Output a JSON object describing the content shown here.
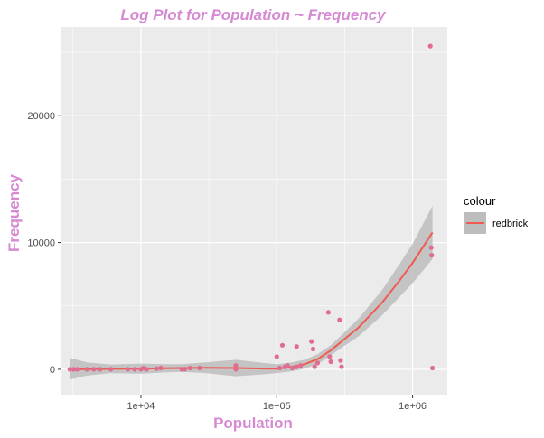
{
  "chart_data": {
    "type": "scatter",
    "title": "Log Plot for Population ~ Frequency",
    "xlabel": "Population",
    "ylabel": "Frequency",
    "x_scale": "log10",
    "xlim": [
      2600,
      1800000
    ],
    "ylim": [
      -2000,
      27000
    ],
    "x_ticks": [
      10000,
      100000,
      1000000
    ],
    "x_tick_labels": [
      "1e+04",
      "1e+05",
      "1e+06"
    ],
    "y_ticks": [
      0,
      10000,
      20000
    ],
    "y_tick_labels": [
      "0",
      "10000",
      "20000"
    ],
    "grid": true,
    "legend": {
      "title": "colour",
      "placement": "right",
      "entries": [
        "redbrick"
      ]
    },
    "colors": {
      "point": "#e06c8f",
      "line": "#f05a50",
      "ribbon": "#bdbdbd",
      "panel": "#ebebeb",
      "gridline": "#ffffff",
      "title": "#d68ad2",
      "axis_title": "#d68ad2"
    },
    "points": {
      "x": [
        3000,
        3200,
        3400,
        4000,
        4500,
        5000,
        6000,
        8000,
        9000,
        10000,
        10500,
        11000,
        13000,
        14000,
        20000,
        21000,
        23000,
        27000,
        50000,
        50000,
        100000,
        105000,
        110000,
        115000,
        120000,
        130000,
        140000,
        140000,
        150000,
        180000,
        185000,
        190000,
        200000,
        240000,
        245000,
        250000,
        290000,
        295000,
        300000,
        1350000,
        1370000,
        1380000,
        1400000
      ],
      "y": [
        0,
        0,
        0,
        0,
        0,
        0,
        0,
        0,
        0,
        0,
        100,
        0,
        50,
        100,
        0,
        0,
        100,
        100,
        0,
        300,
        1000,
        100,
        1900,
        200,
        300,
        100,
        1800,
        200,
        300,
        2200,
        1600,
        200,
        500,
        4500,
        1000,
        600,
        3900,
        700,
        200,
        25500,
        9600,
        9000,
        100
      ]
    },
    "smooth": {
      "x": [
        3000,
        4000,
        6000,
        10000,
        15000,
        20000,
        30000,
        50000,
        80000,
        100000,
        130000,
        160000,
        200000,
        250000,
        300000,
        400000,
        600000,
        800000,
        1000000,
        1400000
      ],
      "y": [
        0,
        20,
        40,
        50,
        80,
        100,
        120,
        100,
        60,
        50,
        200,
        400,
        800,
        1500,
        2200,
        3300,
        5300,
        7000,
        8400,
        10800
      ],
      "lower": [
        -800,
        -500,
        -300,
        -350,
        -250,
        -200,
        -300,
        -550,
        -400,
        -300,
        -150,
        50,
        400,
        1100,
        1700,
        2600,
        4300,
        5700,
        6800,
        8700
      ],
      "upper": [
        900,
        550,
        380,
        450,
        400,
        400,
        550,
        750,
        500,
        400,
        550,
        750,
        1200,
        1900,
        2700,
        4000,
        6300,
        8300,
        9900,
        12900
      ]
    }
  }
}
